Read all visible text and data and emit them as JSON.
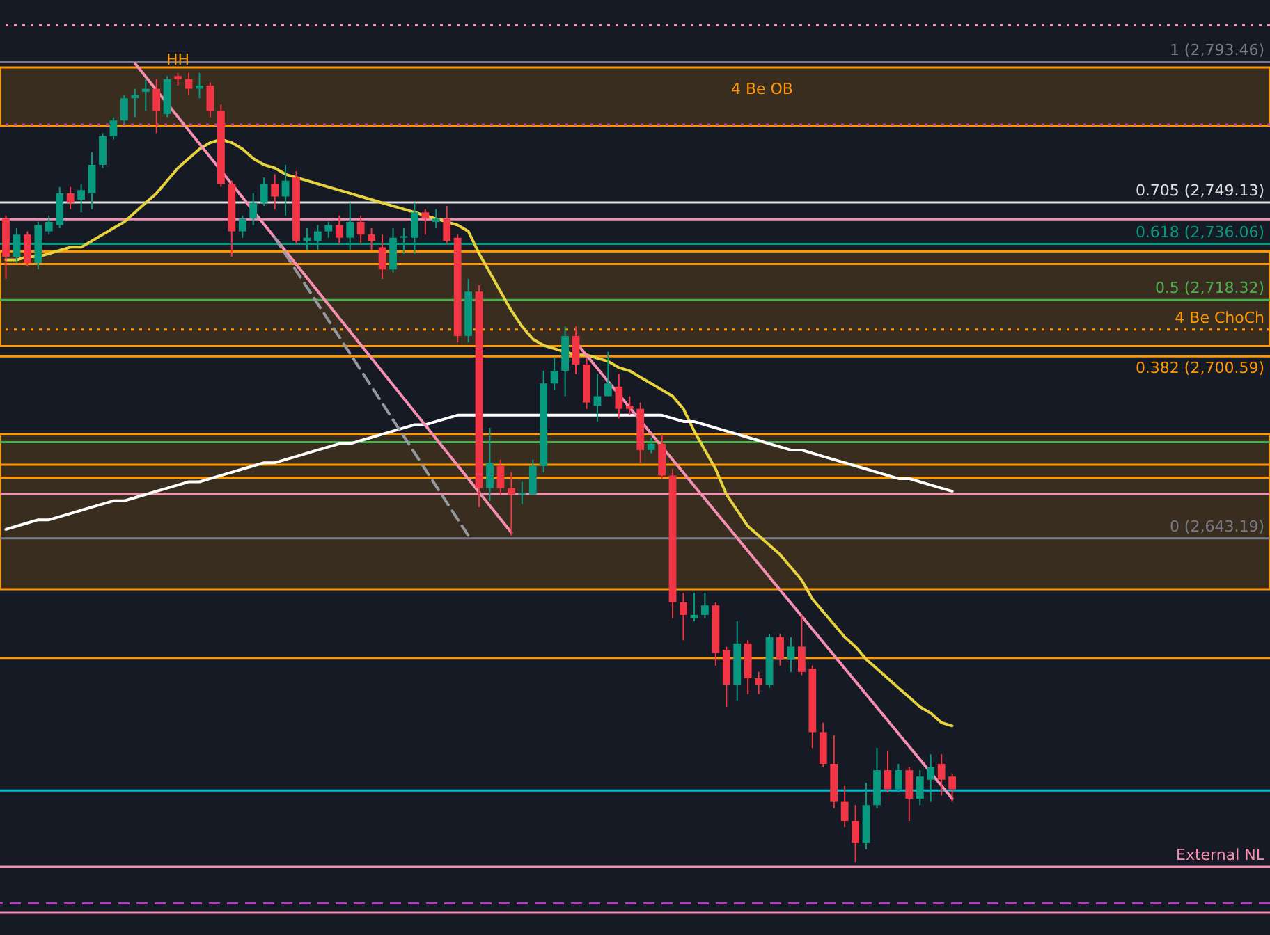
{
  "chart_data": {
    "type": "candlestick",
    "categories": [
      null,
      null,
      null,
      null,
      null,
      null,
      null,
      null,
      null,
      null,
      null,
      null,
      null,
      null,
      null,
      null,
      null,
      null,
      null,
      null,
      null,
      null,
      null,
      null,
      null,
      null,
      null,
      null,
      null,
      null,
      null,
      null,
      null,
      null,
      null,
      null,
      null,
      null,
      null,
      null,
      null,
      null,
      null,
      null,
      null,
      null,
      null,
      null,
      null,
      null,
      null,
      null,
      null,
      null,
      null,
      null,
      null,
      null,
      null,
      null,
      null,
      null,
      null,
      null,
      null,
      null,
      null,
      null,
      null,
      null,
      null,
      null,
      null,
      null,
      null,
      null,
      null,
      null,
      null,
      null,
      null,
      null,
      null,
      null,
      null,
      null,
      null,
      null,
      null,
      null,
      null,
      null,
      null,
      null,
      null,
      null,
      null,
      null,
      null,
      null,
      null,
      null,
      null,
      null,
      null,
      null,
      null,
      null,
      null,
      null,
      null,
      null,
      null,
      null,
      null,
      null,
      null,
      null
    ],
    "ohlc": [
      [
        2744,
        2745,
        2725,
        2732
      ],
      [
        2732,
        2741,
        2730,
        2739
      ],
      [
        2739,
        2740,
        2729,
        2730
      ],
      [
        2730,
        2743,
        2728,
        2742
      ],
      [
        2740,
        2745,
        2739,
        2743
      ],
      [
        2742,
        2754,
        2741,
        2752
      ],
      [
        2752,
        2754,
        2747,
        2749
      ],
      [
        2750,
        2755,
        2746,
        2753
      ],
      [
        2752,
        2765,
        2747,
        2761
      ],
      [
        2761,
        2771,
        2760,
        2770
      ],
      [
        2770,
        2776,
        2769,
        2775
      ],
      [
        2775,
        2783,
        2774,
        2782
      ],
      [
        2782,
        2785,
        2776,
        2783
      ],
      [
        2784,
        2788,
        2778,
        2785
      ],
      [
        2785,
        2788,
        2771,
        2778
      ],
      [
        2777,
        2789,
        2776,
        2788
      ],
      [
        2789,
        2790,
        2786,
        2788
      ],
      [
        2788,
        2790,
        2783,
        2785
      ],
      [
        2785,
        2790,
        2782,
        2786
      ],
      [
        2786,
        2787,
        2776,
        2778
      ],
      [
        2778,
        2780,
        2754,
        2755
      ],
      [
        2755,
        2756,
        2732,
        2740
      ],
      [
        2740,
        2745,
        2738,
        2744
      ],
      [
        2744,
        2752,
        2742,
        2749
      ],
      [
        2749,
        2757,
        2748,
        2755
      ],
      [
        2755,
        2758,
        2747,
        2751
      ],
      [
        2751,
        2761,
        2745,
        2756
      ],
      [
        2757,
        2759,
        2736,
        2737
      ],
      [
        2737,
        2741,
        2734,
        2738
      ],
      [
        2737,
        2742,
        2734,
        2740
      ],
      [
        2740,
        2743,
        2738,
        2742
      ],
      [
        2742,
        2745,
        2736,
        2738
      ],
      [
        2738,
        2749,
        2734,
        2743
      ],
      [
        2743,
        2745,
        2736,
        2739
      ],
      [
        2739,
        2741,
        2734,
        2737
      ],
      [
        2735,
        2739,
        2725,
        2728
      ],
      [
        2728,
        2741,
        2727,
        2738
      ],
      [
        2738,
        2741,
        2733,
        2738.5
      ],
      [
        2738,
        2749,
        2733,
        2746
      ],
      [
        2746,
        2747,
        2739,
        2744
      ],
      [
        2743,
        2747,
        2741,
        2744
      ],
      [
        2744,
        2748,
        2736,
        2737
      ],
      [
        2738,
        2739,
        2705,
        2707
      ],
      [
        2707,
        2725,
        2705,
        2721
      ],
      [
        2721,
        2723,
        2653,
        2659
      ],
      [
        2659,
        2678,
        2655,
        2667
      ],
      [
        2666,
        2668,
        2657,
        2659
      ],
      [
        2659,
        2664,
        2644,
        2657
      ],
      [
        2657,
        2661,
        2654,
        2657.5
      ],
      [
        2657,
        2668,
        2657,
        2666
      ],
      [
        2666,
        2696,
        2664,
        2692
      ],
      [
        2692,
        2700,
        2690,
        2696
      ],
      [
        2696,
        2710,
        2688,
        2707
      ],
      [
        2707,
        2710,
        2695,
        2698
      ],
      [
        2698,
        2700,
        2684,
        2686
      ],
      [
        2685,
        2695,
        2680,
        2688
      ],
      [
        2688,
        2702,
        2688,
        2692
      ],
      [
        2691,
        2695,
        2681,
        2684
      ],
      [
        2685,
        2688,
        2682,
        2684
      ],
      [
        2684,
        2686,
        2667,
        2671
      ],
      [
        2671,
        2675,
        2670,
        2673
      ],
      [
        2673,
        2676,
        2662,
        2663
      ],
      [
        2663,
        2665,
        2618,
        2623
      ],
      [
        2623,
        2626,
        2611,
        2619
      ],
      [
        2618,
        2626,
        2617,
        2619
      ],
      [
        2619,
        2626,
        2618,
        2622
      ],
      [
        2622,
        2623,
        2603,
        2607
      ],
      [
        2608,
        2609,
        2590,
        2597
      ],
      [
        2597,
        2617,
        2592,
        2610
      ],
      [
        2610,
        2611,
        2594,
        2599
      ],
      [
        2599,
        2601,
        2594,
        2597
      ],
      [
        2597,
        2613,
        2596,
        2612
      ],
      [
        2612,
        2613,
        2603,
        2605
      ],
      [
        2605,
        2612,
        2601,
        2609
      ],
      [
        2609,
        2619,
        2600,
        2601
      ],
      [
        2602,
        2603,
        2577,
        2582
      ],
      [
        2582,
        2585,
        2571,
        2572
      ],
      [
        2572,
        2581,
        2558,
        2560
      ],
      [
        2560,
        2565,
        2552,
        2554
      ],
      [
        2554,
        2559,
        2541,
        2547
      ],
      [
        2547,
        2566,
        2545,
        2559
      ],
      [
        2559,
        2577,
        2558,
        2570
      ],
      [
        2570,
        2576,
        2563,
        2564
      ],
      [
        2564,
        2572,
        2563,
        2570
      ],
      [
        2570,
        2571,
        2554,
        2561
      ],
      [
        2561,
        2570,
        2559,
        2568
      ],
      [
        2567,
        2575,
        2560,
        2571
      ],
      [
        2572,
        2575,
        2562,
        2567
      ],
      [
        2568,
        2569,
        2560,
        2564
      ],
      null,
      null,
      null,
      null,
      null,
      null,
      null,
      null,
      null,
      null,
      null,
      null,
      null,
      null,
      null,
      null,
      null,
      null,
      null,
      null,
      null,
      null,
      null,
      null,
      null,
      null,
      null,
      null,
      null
    ],
    "colors": [
      "#f23645",
      "#089981",
      "#f23645",
      "#089981",
      "#089981",
      "#089981",
      "#f23645",
      "#089981",
      "#089981",
      "#089981",
      "#089981",
      "#089981",
      "#089981",
      "#089981",
      "#f23645",
      "#089981",
      "#f23645",
      "#f23645",
      "#089981",
      "#f23645",
      "#f23645",
      "#f23645",
      "#089981",
      "#089981",
      "#089981",
      "#f23645",
      "#089981",
      "#f23645",
      "#089981",
      "#089981",
      "#089981",
      "#f23645",
      "#089981",
      "#f23645",
      "#f23645",
      "#f23645",
      "#089981",
      "#089981",
      "#089981",
      "#f23645",
      "#089981",
      "#f23645",
      "#f23645",
      "#089981",
      "#f23645",
      "#089981",
      "#f23645",
      "#f23645",
      "#089981",
      "#089981",
      "#089981",
      "#089981",
      "#089981",
      "#f23645",
      "#f23645",
      "#089981",
      "#089981",
      "#f23645",
      "#f23645",
      "#f23645",
      "#089981",
      "#f23645",
      "#f23645",
      "#f23645",
      "#089981",
      "#089981",
      "#f23645",
      "#f23645",
      "#089981",
      "#f23645",
      "#f23645",
      "#089981",
      "#f23645",
      "#089981",
      "#f23645",
      "#f23645",
      "#f23645",
      "#f23645",
      "#f23645",
      "#f23645",
      "#089981",
      "#089981",
      "#f23645",
      "#089981",
      "#f23645",
      "#089981",
      "#089981",
      "#f23645",
      "#f23645",
      null,
      null,
      null,
      null,
      null,
      null,
      null,
      null,
      null,
      null,
      null,
      null,
      null,
      null,
      null,
      null,
      null,
      null,
      null,
      null,
      null,
      null,
      null,
      null,
      null,
      null,
      null,
      null,
      null
    ],
    "series": [
      {
        "type": "line",
        "color": "#e6d23c",
        "values": [
          2731,
          2731,
          2732,
          2732,
          2733,
          2734,
          2735,
          2735,
          2737,
          2739,
          2741,
          2743,
          2746,
          2749,
          2752,
          2756,
          2760,
          2763,
          2766,
          2768,
          2769,
          2768,
          2766,
          2763,
          2761,
          2760,
          2758,
          2757,
          2756,
          2755,
          2754,
          2753,
          2752,
          2751,
          2750,
          2749,
          2748,
          2747,
          2746,
          2745,
          2744,
          2743,
          2742,
          2740,
          2733,
          2727,
          2721,
          2715,
          2710,
          2706,
          2704,
          2703,
          2702,
          2701,
          2701,
          2700,
          2699,
          2697,
          2696,
          2694,
          2692,
          2690,
          2688,
          2684,
          2677,
          2671,
          2665,
          2657,
          2652,
          2647,
          2644,
          2641,
          2638,
          2634,
          2630,
          2624,
          2620,
          2616,
          2612,
          2609,
          2605,
          2602,
          2599,
          2596,
          2593,
          2590,
          2588,
          2585,
          2584,
          null,
          null,
          null,
          null,
          null,
          null,
          null,
          null,
          null,
          null,
          null,
          null,
          null,
          null,
          null,
          null,
          null,
          null,
          null,
          null,
          null,
          null,
          null,
          null,
          null,
          null,
          null,
          null,
          null
        ]
      },
      {
        "type": "line",
        "color": "#ffffff",
        "values": [
          2646,
          2647,
          2648,
          2649,
          2649,
          2650,
          2651,
          2652,
          2653,
          2654,
          2655,
          2655,
          2656,
          2657,
          2658,
          2659,
          2660,
          2661,
          2661,
          2662,
          2663,
          2664,
          2665,
          2666,
          2667,
          2667,
          2668,
          2669,
          2670,
          2671,
          2672,
          2673,
          2673,
          2674,
          2675,
          2676,
          2677,
          2678,
          2679,
          2679,
          2680,
          2681,
          2682,
          2682,
          2682,
          2682,
          2682,
          2682,
          2682,
          2682,
          2682,
          2682,
          2682,
          2682,
          2682,
          2682,
          2682,
          2682,
          2682,
          2682,
          2682,
          2682,
          2681,
          2680,
          2680,
          2679,
          2678,
          2677,
          2676,
          2675,
          2674,
          2673,
          2672,
          2671,
          2671,
          2670,
          2669,
          2668,
          2667,
          2666,
          2665,
          2664,
          2663,
          2662,
          2662,
          2661,
          2660,
          2659,
          2658,
          null,
          null,
          null,
          null,
          null,
          null,
          null,
          null,
          null,
          null,
          null,
          null,
          null,
          null,
          null,
          null,
          null,
          null,
          null,
          null,
          null,
          null,
          null,
          null,
          null,
          null,
          null,
          null,
          null
        ]
      },
      {
        "type": "line",
        "color": "#f48fb1",
        "values": [
          null,
          null,
          null,
          null,
          null,
          null,
          null,
          null,
          null,
          null,
          null,
          null,
          2793,
          null,
          null,
          null,
          null,
          null,
          null,
          null,
          null,
          null,
          null,
          null,
          null,
          null,
          null,
          null,
          null,
          null,
          null,
          null,
          null,
          null,
          null,
          null,
          null,
          null,
          null,
          null,
          null,
          null,
          null,
          null,
          null,
          null,
          null,
          2645,
          null,
          null,
          null,
          null,
          null,
          null,
          null,
          null,
          null,
          null,
          null,
          null,
          null,
          null,
          null,
          null,
          null,
          null,
          null,
          null,
          null,
          null,
          null,
          null,
          null,
          null,
          null,
          null,
          null,
          null,
          null,
          null,
          null,
          null,
          null,
          null,
          null,
          null,
          null,
          null,
          null,
          null,
          null,
          null,
          null,
          null,
          null,
          null,
          null,
          null,
          null,
          null,
          null,
          null,
          null,
          null,
          null,
          null,
          null,
          null,
          null,
          null,
          null,
          null,
          null,
          null,
          null,
          null,
          null,
          null
        ]
      },
      {
        "type": "line",
        "color": "#f48fb1",
        "values": [
          null,
          null,
          null,
          null,
          null,
          null,
          null,
          null,
          null,
          null,
          null,
          null,
          null,
          null,
          null,
          null,
          null,
          null,
          null,
          null,
          null,
          null,
          null,
          null,
          null,
          null,
          null,
          null,
          null,
          null,
          null,
          null,
          null,
          null,
          null,
          null,
          null,
          null,
          null,
          null,
          null,
          null,
          null,
          null,
          null,
          null,
          null,
          null,
          null,
          null,
          null,
          null,
          null,
          2705,
          null,
          null,
          null,
          null,
          null,
          null,
          null,
          null,
          null,
          null,
          null,
          null,
          null,
          null,
          null,
          null,
          null,
          null,
          null,
          null,
          null,
          null,
          null,
          null,
          null,
          null,
          null,
          null,
          null,
          null,
          null,
          null,
          null,
          null,
          2561,
          null,
          null,
          null,
          null,
          null,
          null,
          null,
          null,
          null,
          null,
          null,
          null,
          null,
          null,
          null,
          null,
          null,
          null,
          null,
          null,
          null,
          null,
          null,
          null,
          null,
          null,
          null,
          null,
          null
        ]
      },
      {
        "type": "line",
        "color": "#9598a1",
        "line_style": "dashed",
        "values": [
          null,
          null,
          null,
          null,
          null,
          null,
          null,
          null,
          null,
          null,
          null,
          null,
          null,
          null,
          null,
          null,
          null,
          null,
          null,
          null,
          null,
          null,
          null,
          null,
          null,
          2738,
          null,
          null,
          null,
          null,
          null,
          null,
          null,
          null,
          null,
          null,
          null,
          null,
          null,
          null,
          null,
          null,
          null,
          2644,
          null,
          null,
          null,
          null,
          null,
          null,
          null,
          null,
          null,
          null,
          null,
          null,
          null,
          null,
          null,
          null,
          null,
          null,
          null,
          null,
          null,
          null,
          null,
          null,
          null,
          null,
          null,
          null,
          null,
          null,
          null,
          null,
          null,
          null,
          null,
          null,
          null,
          null,
          null,
          null,
          null,
          null,
          null,
          null,
          null,
          null,
          null,
          null,
          null,
          null,
          null,
          null,
          null,
          null,
          null,
          null,
          null,
          null,
          null,
          null,
          null,
          null,
          null,
          null,
          null,
          null,
          null,
          null,
          null,
          null,
          null,
          null,
          null,
          null
        ]
      }
    ],
    "ylim": [
      2518,
      2813
    ],
    "tick_labels": false,
    "annotations": [
      "HH"
    ],
    "bands": [
      {
        "axis": "y",
        "from": 2773.3,
        "to": 2791.7,
        "label": "4 Be OB",
        "color": "#ff9800"
      },
      {
        "axis": "y",
        "from": 2703.8,
        "to": 2733.7,
        "color": "#ff9800"
      },
      {
        "axis": "y",
        "from": 2662.3,
        "to": 2676,
        "color": "#ff9800"
      },
      {
        "axis": "y",
        "from": 2627.1,
        "to": 2662.3,
        "color": "#ff9800"
      }
    ],
    "ref_lines": [
      {
        "axis": "y",
        "value": 2805,
        "color": "#f48fb1",
        "line_style": "dotted"
      },
      {
        "axis": "y",
        "value": 2793.46,
        "label": "1 (2,793.46)",
        "color": "#787b86"
      },
      {
        "axis": "y",
        "value": 2773.7,
        "color": "#b23ac0",
        "line_style": "dotted"
      },
      {
        "axis": "y",
        "value": 2749.13,
        "label": "0.705 (2,749.13)",
        "color": "#e0e0e0"
      },
      {
        "axis": "y",
        "value": 2743.8,
        "color": "#f48fb1"
      },
      {
        "axis": "y",
        "value": 2736.06,
        "label": "0.618 (2,736.06)",
        "color": "#089981"
      },
      {
        "axis": "y",
        "value": 2733.7,
        "color": "#ff9800"
      },
      {
        "axis": "y",
        "value": 2729.7,
        "color": "#ff9800"
      },
      {
        "axis": "y",
        "value": 2718.32,
        "label": "0.5 (2,718.32)",
        "color": "#4caf50"
      },
      {
        "axis": "y",
        "value": 2709,
        "label": "4 Be ChoCh",
        "color": "#ff9800",
        "line_style": "dotted"
      },
      {
        "axis": "y",
        "value": 2700.59,
        "label": "0.382 (2,700.59)",
        "color": "#ff9800"
      },
      {
        "axis": "y",
        "value": 2673.5,
        "color": "#4caf50"
      },
      {
        "axis": "y",
        "value": 2666.4,
        "color": "#ff9800"
      },
      {
        "axis": "y",
        "value": 2657.2,
        "color": "#f48fb1"
      },
      {
        "axis": "y",
        "value": 2643.19,
        "label": "0 (2,643.19)",
        "color": "#787b86"
      },
      {
        "axis": "y",
        "value": 2605.4,
        "color": "#ff9800"
      },
      {
        "axis": "y",
        "value": 2563.6,
        "color": "#00bcd4"
      },
      {
        "axis": "y",
        "value": 2539.5,
        "label": "External NL",
        "color": "#f48fb1"
      },
      {
        "axis": "y",
        "value": 2528,
        "color": "#b23ac0",
        "line_style": "dashed"
      },
      {
        "axis": "y",
        "value": 2525,
        "color": "#f48fb1"
      }
    ]
  }
}
